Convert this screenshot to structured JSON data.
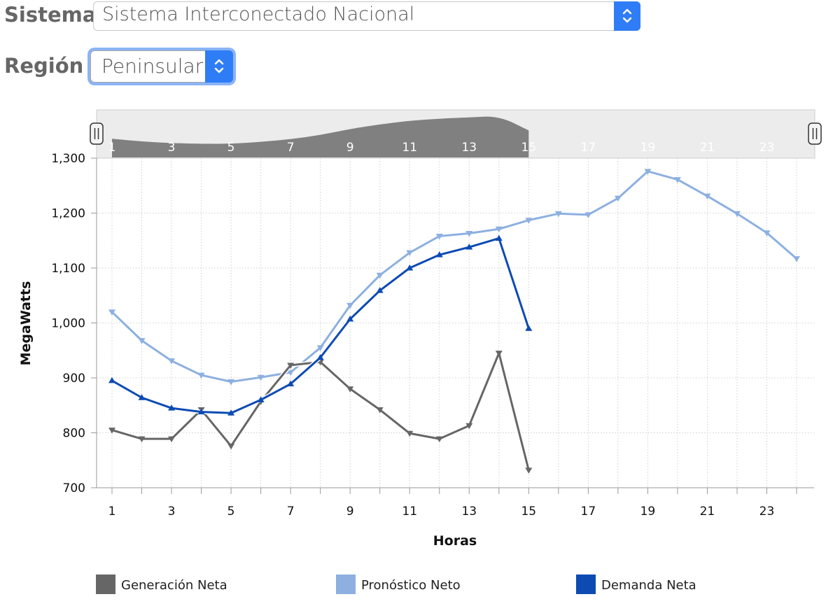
{
  "filters": {
    "sistema": {
      "label": "Sistema",
      "value": "Sistema Interconectado Nacional"
    },
    "region": {
      "label": "Región",
      "value": "Peninsular"
    }
  },
  "colors": {
    "generacion": "#666666",
    "pronostico": "#8db0e0",
    "demanda": "#0d4bb3",
    "select_accent": "#2f7df6",
    "scroll_fill": "#808080"
  },
  "chart_data": {
    "type": "line",
    "xlabel": "Horas",
    "ylabel": "MegaWatts",
    "xlim": [
      1,
      24
    ],
    "ylim": [
      700,
      1300
    ],
    "x_ticks": [
      "1",
      "3",
      "5",
      "7",
      "9",
      "11",
      "13",
      "15",
      "17",
      "19",
      "21",
      "23"
    ],
    "y_ticks": [
      "700",
      "800",
      "900",
      "1,000",
      "1,100",
      "1,200",
      "1,300"
    ],
    "grid": true,
    "legend_position": "bottom",
    "series": [
      {
        "name": "Generación Neta",
        "color": "#666666",
        "marker": "triangle-down",
        "x": [
          1,
          2,
          3,
          4,
          5,
          6,
          7,
          8,
          9,
          10,
          11,
          12,
          13,
          14,
          15
        ],
        "values": [
          805,
          789,
          789,
          842,
          776,
          857,
          923,
          929,
          880,
          842,
          799,
          789,
          813,
          945,
          732
        ]
      },
      {
        "name": "Pronóstico Neto",
        "color": "#8db0e0",
        "marker": "triangle-down",
        "x": [
          1,
          2,
          3,
          4,
          5,
          6,
          7,
          8,
          9,
          10,
          11,
          12,
          13,
          14,
          15,
          16,
          17,
          18,
          19,
          20,
          21,
          22,
          23,
          24
        ],
        "values": [
          1020,
          968,
          931,
          905,
          893,
          901,
          910,
          955,
          1032,
          1087,
          1128,
          1158,
          1163,
          1171,
          1187,
          1199,
          1197,
          1227,
          1276,
          1261,
          1231,
          1199,
          1164,
          1117
        ]
      },
      {
        "name": "Demanda Neta",
        "color": "#0d4bb3",
        "marker": "triangle-up",
        "x": [
          1,
          2,
          3,
          4,
          5,
          6,
          7,
          8,
          9,
          10,
          11,
          12,
          13,
          14,
          15
        ],
        "values": [
          895,
          864,
          845,
          838,
          836,
          860,
          889,
          937,
          1007,
          1059,
          1100,
          1124,
          1138,
          1154,
          990
        ]
      }
    ],
    "navigator": {
      "x_ticks": [
        "1",
        "3",
        "5",
        "7",
        "9",
        "11",
        "13",
        "15",
        "17",
        "19",
        "21",
        "23"
      ]
    }
  }
}
